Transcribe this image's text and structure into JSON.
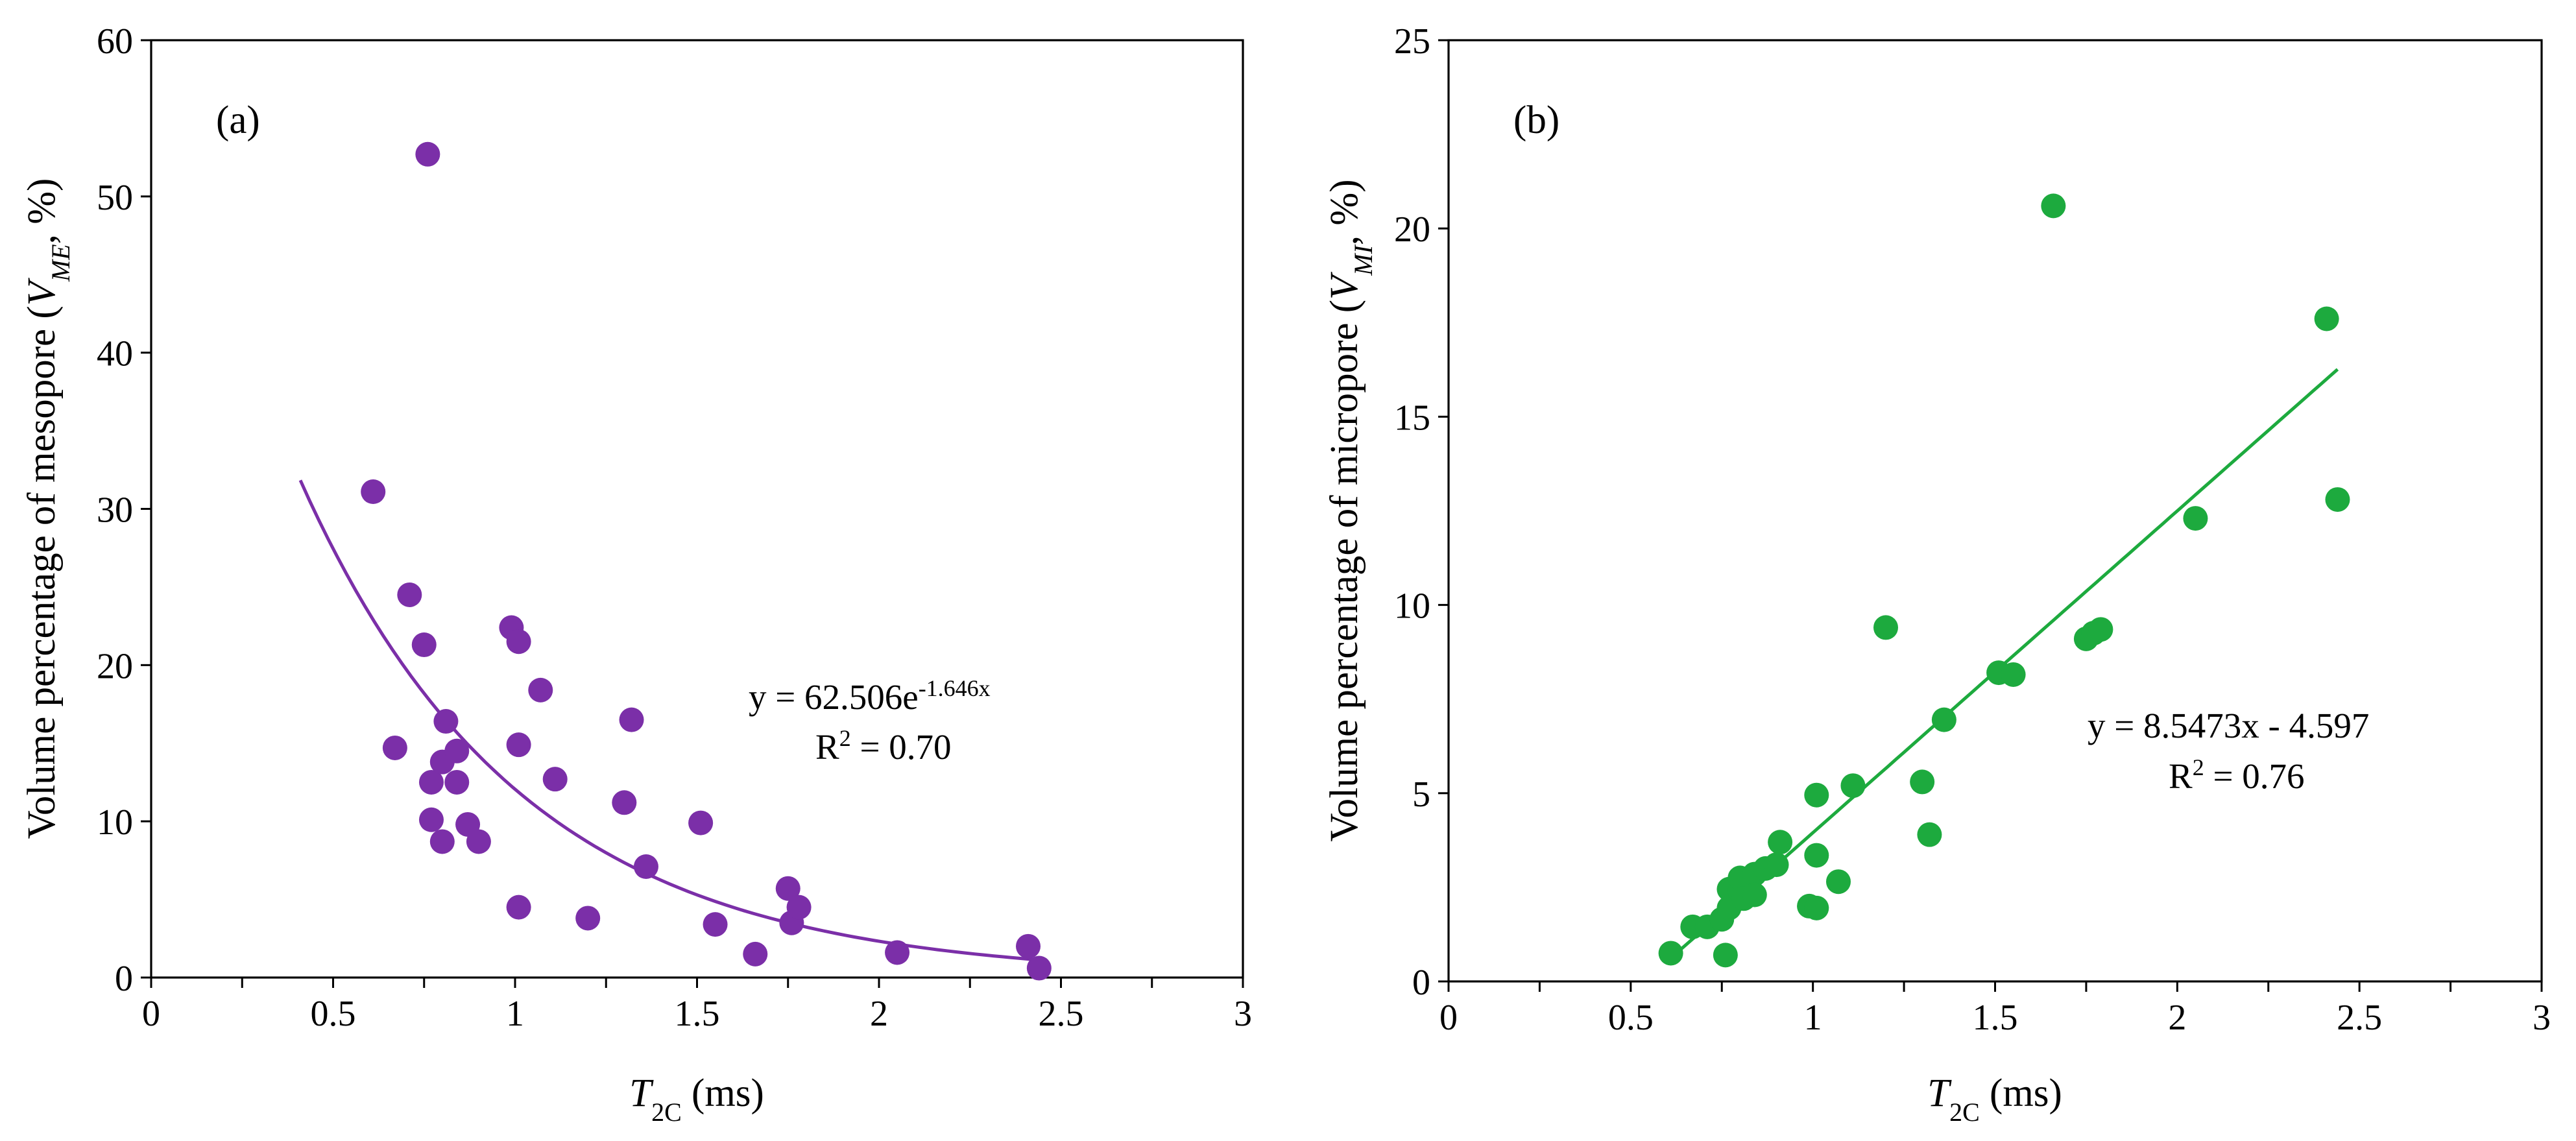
{
  "chart_data": [
    {
      "type": "scatter",
      "panel_label": "(a)",
      "xlabel": {
        "italic": "T",
        "sub": "2C",
        "rest": " (ms)"
      },
      "ylabel": {
        "prefix": "Volume percentage of mesopore (",
        "italic": "V",
        "sub": "ME",
        "suffix": ", %)"
      },
      "xlim": [
        0,
        3
      ],
      "ylim": [
        0,
        60
      ],
      "xticks": [
        "0",
        "0.5",
        "1",
        "1.5",
        "2",
        "2.5",
        "3"
      ],
      "yticks": [
        "0",
        "10",
        "20",
        "30",
        "40",
        "50",
        "60"
      ],
      "color": "#7B2FA8",
      "points": [
        [
          0.61,
          31.1
        ],
        [
          0.67,
          14.7
        ],
        [
          0.71,
          24.5
        ],
        [
          0.75,
          21.3
        ],
        [
          0.76,
          52.7
        ],
        [
          0.77,
          12.5
        ],
        [
          0.77,
          10.1
        ],
        [
          0.8,
          8.7
        ],
        [
          0.8,
          13.8
        ],
        [
          0.81,
          16.4
        ],
        [
          0.84,
          14.5
        ],
        [
          0.84,
          12.5
        ],
        [
          0.87,
          9.8
        ],
        [
          0.9,
          8.7
        ],
        [
          0.99,
          22.4
        ],
        [
          1.01,
          21.5
        ],
        [
          1.01,
          14.9
        ],
        [
          1.01,
          4.5
        ],
        [
          1.07,
          18.4
        ],
        [
          1.11,
          12.7
        ],
        [
          1.2,
          3.8
        ],
        [
          1.3,
          11.2
        ],
        [
          1.32,
          16.5
        ],
        [
          1.36,
          7.1
        ],
        [
          1.51,
          9.9
        ],
        [
          1.55,
          3.4
        ],
        [
          1.66,
          1.5
        ],
        [
          1.75,
          5.7
        ],
        [
          1.76,
          3.5
        ],
        [
          1.78,
          4.5
        ],
        [
          2.05,
          1.6
        ],
        [
          2.41,
          2.0
        ],
        [
          2.44,
          0.6
        ]
      ],
      "trendline": {
        "model": "exponential",
        "a": 62.506,
        "b": -1.646,
        "x_range": [
          0.41,
          2.44
        ]
      },
      "equation": {
        "prefix": "y = 62.506e",
        "sup": "-1.646x"
      },
      "r2": {
        "prefix": "R",
        "sup": "2",
        "suffix": " = 0.70"
      }
    },
    {
      "type": "scatter",
      "panel_label": "(b)",
      "xlabel": {
        "italic": "T",
        "sub": "2C",
        "rest": " (ms)"
      },
      "ylabel": {
        "prefix": "Volume percentage of micropore (",
        "italic": "V",
        "sub": "MI",
        "suffix": ", %)"
      },
      "xlim": [
        0,
        3
      ],
      "ylim": [
        0,
        25
      ],
      "xticks": [
        "0",
        "0.5",
        "1",
        "1.5",
        "2",
        "2.5",
        "3"
      ],
      "yticks": [
        "0",
        "5",
        "10",
        "15",
        "20",
        "25"
      ],
      "color": "#1DAA3E",
      "points": [
        [
          0.61,
          0.75
        ],
        [
          0.67,
          1.45
        ],
        [
          0.71,
          1.45
        ],
        [
          0.75,
          1.65
        ],
        [
          0.76,
          0.7
        ],
        [
          0.77,
          2.45
        ],
        [
          0.77,
          1.95
        ],
        [
          0.8,
          2.4
        ],
        [
          0.8,
          2.75
        ],
        [
          0.81,
          2.2
        ],
        [
          0.84,
          2.85
        ],
        [
          0.84,
          2.3
        ],
        [
          0.87,
          3.0
        ],
        [
          0.9,
          3.1
        ],
        [
          0.91,
          3.7
        ],
        [
          0.99,
          2.0
        ],
        [
          1.01,
          4.95
        ],
        [
          1.01,
          3.35
        ],
        [
          1.01,
          1.95
        ],
        [
          1.07,
          2.65
        ],
        [
          1.11,
          5.2
        ],
        [
          1.2,
          9.4
        ],
        [
          1.3,
          5.3
        ],
        [
          1.32,
          3.9
        ],
        [
          1.36,
          6.95
        ],
        [
          1.51,
          8.2
        ],
        [
          1.55,
          8.15
        ],
        [
          1.66,
          20.6
        ],
        [
          1.75,
          9.1
        ],
        [
          1.77,
          9.25
        ],
        [
          1.79,
          9.35
        ],
        [
          2.05,
          12.3
        ],
        [
          2.41,
          17.6
        ],
        [
          2.44,
          12.8
        ]
      ],
      "trendline": {
        "model": "linear",
        "slope": 8.5473,
        "intercept": -4.597,
        "x_range": [
          0.61,
          2.44
        ]
      },
      "equation": {
        "text": "y = 8.5473x - 4.597"
      },
      "r2": {
        "prefix": "R",
        "sup": "2",
        "suffix": " = 0.76"
      }
    }
  ]
}
